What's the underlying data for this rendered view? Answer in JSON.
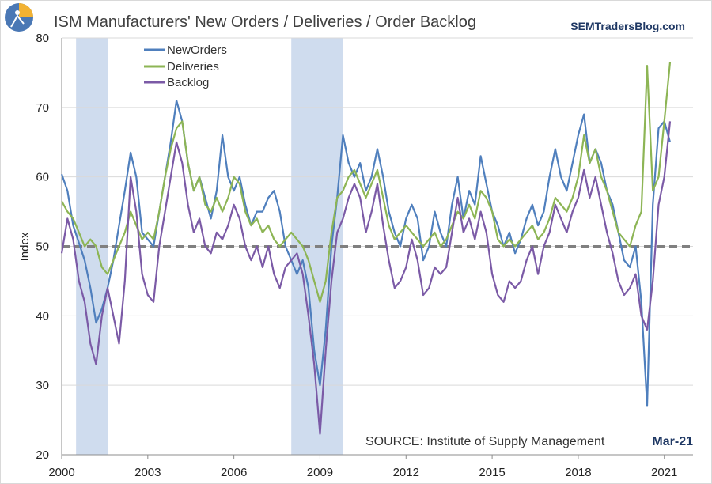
{
  "chart_data": {
    "type": "line",
    "title": "ISM Manufacturers' New Orders / Deliveries / Order Backlog",
    "brand": "SEMTradersBlog.com",
    "source": "SOURCE:  Institute of Supply Management",
    "date_stamp": "Mar-21",
    "ylabel": "Index",
    "xlabel": "",
    "xlim": [
      2000,
      2022
    ],
    "ylim": [
      20,
      80
    ],
    "x_ticks": [
      2000,
      2003,
      2006,
      2009,
      2012,
      2015,
      2018,
      2021
    ],
    "x_tick_labels": [
      "2000",
      "2003",
      "2006",
      "2009",
      "2012",
      "2015",
      "2018",
      "2021"
    ],
    "y_ticks": [
      20,
      30,
      40,
      50,
      60,
      70,
      80
    ],
    "y_tick_labels": [
      "20",
      "30",
      "40",
      "50",
      "60",
      "70",
      "80"
    ],
    "grid": "horizontal",
    "legend_position": "top-left",
    "reference_line": {
      "y": 50,
      "style": "dashed",
      "color": "#808080"
    },
    "recessions": [
      [
        2000.5,
        2001.6
      ],
      [
        2008.0,
        2009.8
      ]
    ],
    "recession_color": "#cfdcee",
    "series": [
      {
        "name": "NewOrders",
        "color": "#4f7fbd",
        "x": [
          2000.0,
          2000.2,
          2000.4,
          2000.6,
          2000.8,
          2001.0,
          2001.2,
          2001.4,
          2001.6,
          2001.8,
          2002.0,
          2002.2,
          2002.4,
          2002.6,
          2002.8,
          2003.0,
          2003.2,
          2003.4,
          2003.6,
          2003.8,
          2004.0,
          2004.2,
          2004.4,
          2004.6,
          2004.8,
          2005.0,
          2005.2,
          2005.4,
          2005.6,
          2005.8,
          2006.0,
          2006.2,
          2006.4,
          2006.6,
          2006.8,
          2007.0,
          2007.2,
          2007.4,
          2007.6,
          2007.8,
          2008.0,
          2008.2,
          2008.4,
          2008.6,
          2008.8,
          2009.0,
          2009.2,
          2009.4,
          2009.6,
          2009.8,
          2010.0,
          2010.2,
          2010.4,
          2010.6,
          2010.8,
          2011.0,
          2011.2,
          2011.4,
          2011.6,
          2011.8,
          2012.0,
          2012.2,
          2012.4,
          2012.6,
          2012.8,
          2013.0,
          2013.2,
          2013.4,
          2013.6,
          2013.8,
          2014.0,
          2014.2,
          2014.4,
          2014.6,
          2014.8,
          2015.0,
          2015.2,
          2015.4,
          2015.6,
          2015.8,
          2016.0,
          2016.2,
          2016.4,
          2016.6,
          2016.8,
          2017.0,
          2017.2,
          2017.4,
          2017.6,
          2017.8,
          2018.0,
          2018.2,
          2018.4,
          2018.6,
          2018.8,
          2019.0,
          2019.2,
          2019.4,
          2019.6,
          2019.8,
          2020.0,
          2020.2,
          2020.4,
          2020.6,
          2020.8,
          2021.0,
          2021.2
        ],
        "values": [
          60.4,
          58.0,
          53.0,
          50.5,
          48.0,
          44.0,
          39.0,
          41.0,
          44.0,
          48.0,
          53.0,
          58.0,
          63.5,
          60.0,
          52.0,
          51.0,
          50.0,
          55.0,
          60.0,
          65.0,
          71.0,
          68.0,
          62.0,
          58.0,
          60.0,
          57.0,
          54.0,
          58.0,
          66.0,
          60.0,
          58.0,
          60.0,
          56.0,
          53.0,
          55.0,
          55.0,
          57.0,
          58.0,
          55.0,
          50.0,
          48.0,
          46.0,
          48.0,
          44.0,
          35.0,
          30.0,
          38.0,
          50.0,
          57.0,
          66.0,
          62.0,
          60.0,
          62.0,
          58.0,
          60.0,
          64.0,
          60.0,
          55.0,
          52.0,
          50.0,
          54.0,
          56.0,
          54.0,
          48.0,
          50.0,
          55.0,
          52.0,
          50.0,
          56.0,
          60.0,
          54.0,
          58.0,
          56.0,
          63.0,
          59.0,
          55.0,
          53.0,
          50.0,
          52.0,
          49.0,
          51.0,
          54.0,
          56.0,
          53.0,
          55.0,
          60.0,
          64.0,
          60.0,
          58.0,
          62.0,
          66.0,
          69.0,
          62.0,
          64.0,
          62.0,
          58.0,
          56.0,
          52.0,
          48.0,
          47.0,
          50.0,
          42.0,
          27.0,
          56.0,
          67.0,
          68.0,
          65.0
        ],
        "points_drawn": false
      },
      {
        "name": "Deliveries",
        "color": "#8db555",
        "x": [
          2000.0,
          2000.2,
          2000.4,
          2000.6,
          2000.8,
          2001.0,
          2001.2,
          2001.4,
          2001.6,
          2001.8,
          2002.0,
          2002.2,
          2002.4,
          2002.6,
          2002.8,
          2003.0,
          2003.2,
          2003.4,
          2003.6,
          2003.8,
          2004.0,
          2004.2,
          2004.4,
          2004.6,
          2004.8,
          2005.0,
          2005.2,
          2005.4,
          2005.6,
          2005.8,
          2006.0,
          2006.2,
          2006.4,
          2006.6,
          2006.8,
          2007.0,
          2007.2,
          2007.4,
          2007.6,
          2007.8,
          2008.0,
          2008.2,
          2008.4,
          2008.6,
          2008.8,
          2009.0,
          2009.2,
          2009.4,
          2009.6,
          2009.8,
          2010.0,
          2010.2,
          2010.4,
          2010.6,
          2010.8,
          2011.0,
          2011.2,
          2011.4,
          2011.6,
          2011.8,
          2012.0,
          2012.2,
          2012.4,
          2012.6,
          2012.8,
          2013.0,
          2013.2,
          2013.4,
          2013.6,
          2013.8,
          2014.0,
          2014.2,
          2014.4,
          2014.6,
          2014.8,
          2015.0,
          2015.2,
          2015.4,
          2015.6,
          2015.8,
          2016.0,
          2016.2,
          2016.4,
          2016.6,
          2016.8,
          2017.0,
          2017.2,
          2017.4,
          2017.6,
          2017.8,
          2018.0,
          2018.2,
          2018.4,
          2018.6,
          2018.8,
          2019.0,
          2019.2,
          2019.4,
          2019.6,
          2019.8,
          2020.0,
          2020.2,
          2020.4,
          2020.6,
          2020.8,
          2021.0,
          2021.2
        ],
        "values": [
          56.5,
          55.0,
          54.0,
          52.0,
          50.0,
          51.0,
          50.0,
          47.0,
          46.0,
          48.0,
          50.0,
          52.0,
          55.0,
          53.0,
          51.0,
          52.0,
          51.0,
          55.0,
          60.0,
          64.0,
          67.0,
          68.0,
          62.0,
          58.0,
          60.0,
          56.0,
          55.0,
          57.0,
          55.0,
          57.0,
          60.0,
          59.0,
          55.0,
          53.0,
          54.0,
          52.0,
          53.0,
          51.0,
          50.0,
          51.0,
          52.0,
          51.0,
          50.0,
          48.0,
          45.0,
          42.0,
          45.0,
          52.0,
          57.0,
          58.0,
          60.0,
          61.0,
          59.0,
          57.0,
          59.0,
          61.0,
          57.0,
          53.0,
          51.0,
          52.0,
          53.0,
          52.0,
          51.0,
          50.0,
          51.0,
          52.0,
          50.0,
          51.0,
          53.0,
          55.0,
          54.0,
          56.0,
          54.0,
          58.0,
          57.0,
          55.0,
          51.0,
          50.0,
          51.0,
          50.0,
          51.0,
          52.0,
          53.0,
          51.0,
          52.0,
          54.0,
          57.0,
          56.0,
          55.0,
          57.0,
          60.0,
          66.0,
          62.0,
          64.0,
          60.0,
          58.0,
          55.0,
          52.0,
          51.0,
          50.0,
          53.0,
          55.0,
          76.0,
          58.0,
          60.0,
          68.0,
          76.5
        ],
        "points_drawn": false
      },
      {
        "name": "Backlog",
        "color": "#7b5aa6",
        "x": [
          2000.0,
          2000.2,
          2000.4,
          2000.6,
          2000.8,
          2001.0,
          2001.2,
          2001.4,
          2001.6,
          2001.8,
          2002.0,
          2002.2,
          2002.4,
          2002.6,
          2002.8,
          2003.0,
          2003.2,
          2003.4,
          2003.6,
          2003.8,
          2004.0,
          2004.2,
          2004.4,
          2004.6,
          2004.8,
          2005.0,
          2005.2,
          2005.4,
          2005.6,
          2005.8,
          2006.0,
          2006.2,
          2006.4,
          2006.6,
          2006.8,
          2007.0,
          2007.2,
          2007.4,
          2007.6,
          2007.8,
          2008.0,
          2008.2,
          2008.4,
          2008.6,
          2008.8,
          2009.0,
          2009.2,
          2009.4,
          2009.6,
          2009.8,
          2010.0,
          2010.2,
          2010.4,
          2010.6,
          2010.8,
          2011.0,
          2011.2,
          2011.4,
          2011.6,
          2011.8,
          2012.0,
          2012.2,
          2012.4,
          2012.6,
          2012.8,
          2013.0,
          2013.2,
          2013.4,
          2013.6,
          2013.8,
          2014.0,
          2014.2,
          2014.4,
          2014.6,
          2014.8,
          2015.0,
          2015.2,
          2015.4,
          2015.6,
          2015.8,
          2016.0,
          2016.2,
          2016.4,
          2016.6,
          2016.8,
          2017.0,
          2017.2,
          2017.4,
          2017.6,
          2017.8,
          2018.0,
          2018.2,
          2018.4,
          2018.6,
          2018.8,
          2019.0,
          2019.2,
          2019.4,
          2019.6,
          2019.8,
          2020.0,
          2020.2,
          2020.4,
          2020.6,
          2020.8,
          2021.0,
          2021.2
        ],
        "values": [
          49.0,
          54.0,
          51.0,
          45.0,
          42.0,
          36.0,
          33.0,
          40.0,
          44.0,
          40.0,
          36.0,
          45.0,
          60.0,
          55.0,
          46.0,
          43.0,
          42.0,
          50.0,
          55.0,
          60.0,
          65.0,
          62.0,
          56.0,
          52.0,
          54.0,
          50.0,
          49.0,
          52.0,
          51.0,
          53.0,
          56.0,
          54.0,
          50.0,
          48.0,
          50.0,
          47.0,
          50.0,
          46.0,
          44.0,
          47.0,
          48.0,
          49.0,
          46.0,
          40.0,
          33.0,
          23.0,
          35.0,
          45.0,
          52.0,
          54.0,
          57.0,
          59.0,
          57.0,
          52.0,
          55.0,
          59.0,
          53.0,
          48.0,
          44.0,
          45.0,
          47.0,
          51.0,
          48.0,
          43.0,
          44.0,
          47.0,
          46.0,
          47.0,
          52.0,
          57.0,
          52.0,
          54.0,
          51.0,
          55.0,
          52.0,
          46.0,
          43.0,
          42.0,
          45.0,
          44.0,
          45.0,
          48.0,
          50.0,
          46.0,
          50.0,
          52.0,
          56.0,
          54.0,
          52.0,
          55.0,
          57.0,
          61.0,
          57.0,
          60.0,
          56.0,
          52.0,
          49.0,
          45.0,
          43.0,
          44.0,
          46.0,
          40.0,
          38.0,
          45.0,
          56.0,
          60.0,
          68.0
        ],
        "points_drawn": false
      }
    ]
  }
}
